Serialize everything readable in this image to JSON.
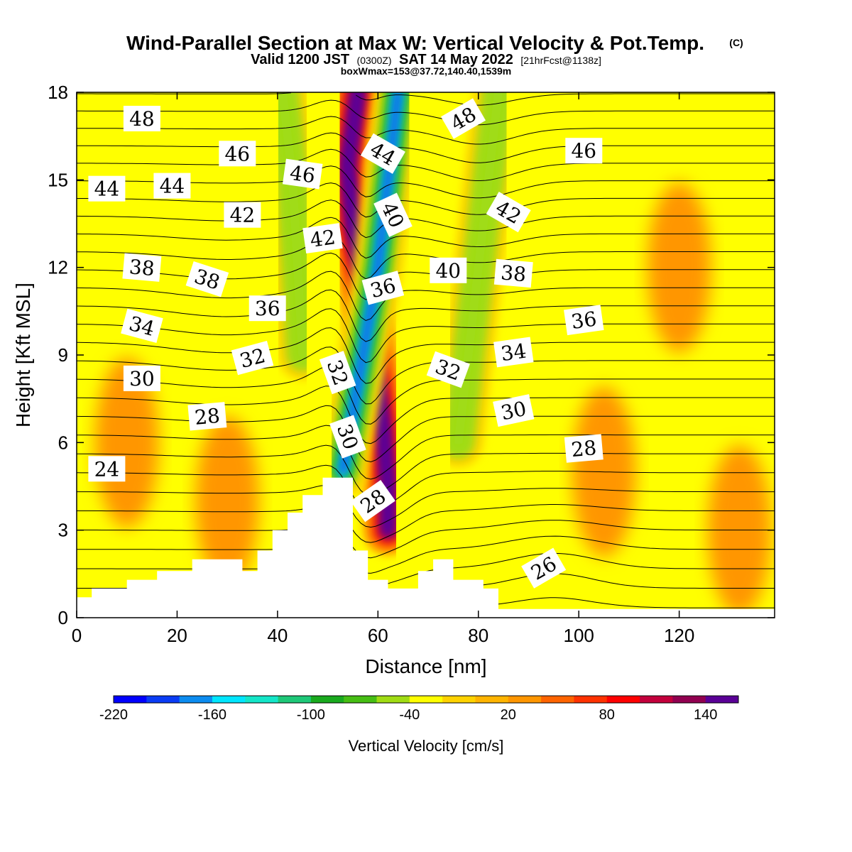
{
  "title": {
    "main": "Wind-Parallel Section at Max W: Vertical Velocity & Pot.Temp.",
    "copyright": "(C)",
    "valid_prefix": "Valid 1200 JST",
    "valid_utc": "(0300Z)",
    "valid_date": "SAT 14 May 2022",
    "forecast": "[21hrFcst@1138z]",
    "box_info": "boxWmax=153@37.72,140.40,1539m"
  },
  "chart_data": {
    "type": "heatmap",
    "xlabel": "Distance [nm]",
    "ylabel": "Height [Kft MSL]",
    "xlim": [
      0,
      139
    ],
    "ylim": [
      0,
      18
    ],
    "x_ticks": [
      0,
      20,
      40,
      60,
      80,
      100,
      120
    ],
    "y_ticks": [
      0,
      3,
      6,
      9,
      12,
      15,
      18
    ],
    "colorbar": {
      "title": "Vertical Velocity [cm/s]",
      "levels": [
        -220,
        -200,
        -180,
        -160,
        -140,
        -120,
        -100,
        -80,
        -60,
        -40,
        -20,
        0,
        20,
        40,
        60,
        80,
        100,
        120,
        140,
        160
      ],
      "tick_labels": [
        -220,
        -160,
        -100,
        -40,
        20,
        80,
        140
      ],
      "colors": [
        "#0000ff",
        "#0a3cf5",
        "#0c8cf0",
        "#00e6ff",
        "#14e6c8",
        "#1ec878",
        "#19aa1e",
        "#46be14",
        "#a0dc14",
        "#ffff00",
        "#ffd200",
        "#ffb400",
        "#ff9600",
        "#ff6400",
        "#ff3200",
        "#ff0000",
        "#c3003c",
        "#910050",
        "#5a0096"
      ]
    },
    "background_color": "#ffff00",
    "w_features": [
      {
        "kind": "updraft-core",
        "x": [
          56,
          54,
          55,
          57,
          59,
          61,
          62,
          62
        ],
        "y": [
          18,
          15.5,
          13.5,
          11.5,
          9,
          6.5,
          4.5,
          3.0
        ],
        "peak_cm_s": 153
      },
      {
        "kind": "downdraft-core",
        "x": [
          64,
          62,
          60,
          56,
          53
        ],
        "y": [
          18,
          15,
          12,
          8,
          5
        ],
        "peak_cm_s": -200
      },
      {
        "kind": "downdraft-lee",
        "x": [
          84,
          82,
          80,
          78,
          76
        ],
        "y": [
          18,
          15,
          12,
          9,
          6
        ],
        "peak_cm_s": -60
      },
      {
        "kind": "downdraft-upstream",
        "x": [
          41,
          43,
          44,
          45
        ],
        "y": [
          18,
          15,
          12,
          9
        ],
        "peak_cm_s": -60
      },
      {
        "kind": "weak-updraft-bands",
        "x": [
          10,
          30,
          105,
          120,
          132
        ],
        "y": [
          6,
          4,
          5,
          12,
          3
        ],
        "peak_cm_s": 20
      }
    ],
    "terrain": {
      "x": [
        0,
        3,
        3,
        10,
        10,
        16,
        16,
        23,
        23,
        33,
        33,
        36,
        36,
        39,
        39,
        42,
        42,
        45,
        45,
        49,
        49,
        55,
        55,
        58,
        58,
        62,
        62,
        68,
        68,
        71,
        71,
        75,
        75,
        81,
        81,
        84,
        84,
        87,
        87,
        139
      ],
      "y_kft": [
        0.7,
        0.7,
        1.0,
        1.0,
        1.3,
        1.3,
        1.6,
        1.6,
        2.0,
        2.0,
        1.6,
        1.6,
        2.3,
        2.3,
        3.0,
        3.0,
        3.6,
        3.6,
        4.2,
        4.2,
        4.8,
        4.8,
        2.3,
        2.3,
        1.3,
        1.3,
        1.0,
        1.0,
        1.6,
        1.6,
        2.0,
        2.0,
        1.3,
        1.3,
        1.0,
        1.0,
        0.3,
        0.3,
        0.3,
        0.3
      ]
    },
    "theta_contours": {
      "interval": 1,
      "levels_labeled": [
        {
          "text": "48",
          "x": 13,
          "y": 17.1,
          "angle": 0
        },
        {
          "text": "48",
          "x": 77,
          "y": 17.1,
          "angle": -30
        },
        {
          "text": "46",
          "x": 32,
          "y": 15.9,
          "angle": 0
        },
        {
          "text": "46",
          "x": 45,
          "y": 15.2,
          "angle": 8
        },
        {
          "text": "46",
          "x": 101,
          "y": 16.0,
          "angle": 0
        },
        {
          "text": "44",
          "x": 6,
          "y": 14.7,
          "angle": 0
        },
        {
          "text": "44",
          "x": 19,
          "y": 14.8,
          "angle": 0
        },
        {
          "text": "44",
          "x": 61,
          "y": 15.9,
          "angle": 30
        },
        {
          "text": "42",
          "x": 33,
          "y": 13.8,
          "angle": 0
        },
        {
          "text": "42",
          "x": 49,
          "y": 13.0,
          "angle": -8
        },
        {
          "text": "42",
          "x": 86,
          "y": 13.9,
          "angle": 30
        },
        {
          "text": "40",
          "x": 63,
          "y": 13.8,
          "angle": 65
        },
        {
          "text": "40",
          "x": 74,
          "y": 11.9,
          "angle": 0
        },
        {
          "text": "38",
          "x": 13,
          "y": 12.0,
          "angle": 5
        },
        {
          "text": "38",
          "x": 26,
          "y": 11.6,
          "angle": 18
        },
        {
          "text": "38",
          "x": 87,
          "y": 11.8,
          "angle": 5
        },
        {
          "text": "36",
          "x": 38,
          "y": 10.6,
          "angle": 0
        },
        {
          "text": "36",
          "x": 61,
          "y": 11.3,
          "angle": -15
        },
        {
          "text": "36",
          "x": 101,
          "y": 10.2,
          "angle": -8
        },
        {
          "text": "34",
          "x": 13,
          "y": 10.0,
          "angle": 15
        },
        {
          "text": "34",
          "x": 87,
          "y": 9.1,
          "angle": -8
        },
        {
          "text": "32",
          "x": 35,
          "y": 8.9,
          "angle": -15
        },
        {
          "text": "32",
          "x": 52,
          "y": 8.4,
          "angle": 70
        },
        {
          "text": "32",
          "x": 74,
          "y": 8.5,
          "angle": 20
        },
        {
          "text": "30",
          "x": 13,
          "y": 8.2,
          "angle": 0
        },
        {
          "text": "30",
          "x": 54,
          "y": 6.2,
          "angle": 70
        },
        {
          "text": "30",
          "x": 87,
          "y": 7.1,
          "angle": -12
        },
        {
          "text": "28",
          "x": 26,
          "y": 6.9,
          "angle": -5
        },
        {
          "text": "28",
          "x": 59,
          "y": 4.0,
          "angle": -35
        },
        {
          "text": "28",
          "x": 101,
          "y": 5.8,
          "angle": -5
        },
        {
          "text": "26",
          "x": 93,
          "y": 1.7,
          "angle": -30
        },
        {
          "text": "24",
          "x": 6,
          "y": 5.1,
          "angle": 0
        }
      ]
    }
  }
}
